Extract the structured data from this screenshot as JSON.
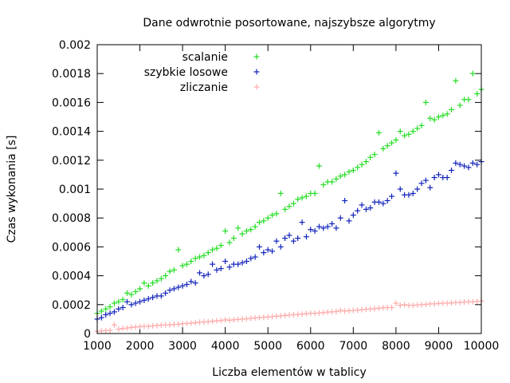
{
  "chart_data": {
    "type": "scatter",
    "title": "Dane odwrotnie posortowane, najszybsze algorytmy",
    "xlabel": "Liczba elementów w tablicy",
    "ylabel": "Czas wykonania [s]",
    "xlim": [
      1000,
      10000
    ],
    "ylim": [
      0,
      0.002
    ],
    "xticks": [
      1000,
      2000,
      3000,
      4000,
      5000,
      6000,
      7000,
      8000,
      9000,
      10000
    ],
    "xtick_labels": [
      "1000",
      "2000",
      "3000",
      "4000",
      "5000",
      "6000",
      "7000",
      "8000",
      "9000",
      "10000"
    ],
    "yticks": [
      0,
      0.0002,
      0.0004,
      0.0006,
      0.0008,
      0.001,
      0.0012,
      0.0014,
      0.0016,
      0.0018,
      0.002
    ],
    "ytick_labels": [
      "0",
      "0.0002",
      "0.0004",
      "0.0006",
      "0.0008",
      "0.001",
      "0.0012",
      "0.0014",
      "0.0016",
      "0.0018",
      "0.002"
    ],
    "grid": false,
    "legend_position": "top-left",
    "series": [
      {
        "name": "scalanie",
        "color": "#22dd22",
        "x": [
          1000,
          1100,
          1200,
          1300,
          1400,
          1500,
          1600,
          1700,
          1800,
          1900,
          2000,
          2100,
          2200,
          2300,
          2400,
          2500,
          2600,
          2700,
          2800,
          2900,
          3000,
          3100,
          3200,
          3300,
          3400,
          3500,
          3600,
          3700,
          3800,
          3900,
          4000,
          4100,
          4200,
          4300,
          4400,
          4500,
          4600,
          4700,
          4800,
          4900,
          5000,
          5100,
          5200,
          5300,
          5400,
          5500,
          5600,
          5700,
          5800,
          5900,
          6000,
          6100,
          6200,
          6300,
          6400,
          6500,
          6600,
          6700,
          6800,
          6900,
          7000,
          7100,
          7200,
          7300,
          7400,
          7500,
          7600,
          7700,
          7800,
          7900,
          8000,
          8100,
          8200,
          8300,
          8400,
          8500,
          8600,
          8700,
          8800,
          8900,
          9000,
          9100,
          9200,
          9300,
          9400,
          9500,
          9600,
          9700,
          9800,
          9900,
          10000
        ],
        "y": [
          0.00014,
          0.000155,
          0.00017,
          0.000185,
          0.00021,
          0.00022,
          0.000235,
          0.00028,
          0.00027,
          0.00029,
          0.00031,
          0.00035,
          0.00033,
          0.00035,
          0.000365,
          0.00038,
          0.0004,
          0.00043,
          0.00044,
          0.00058,
          0.00047,
          0.00048,
          0.0005,
          0.00052,
          0.00053,
          0.00054,
          0.00056,
          0.00058,
          0.00059,
          0.00061,
          0.00071,
          0.00063,
          0.00066,
          0.00073,
          0.00069,
          0.00071,
          0.00072,
          0.00074,
          0.00077,
          0.00078,
          0.0008,
          0.00082,
          0.00083,
          0.00097,
          0.00086,
          0.00088,
          0.0009,
          0.00093,
          0.00094,
          0.00095,
          0.00097,
          0.00097,
          0.00116,
          0.00103,
          0.00105,
          0.00105,
          0.00107,
          0.00109,
          0.0011,
          0.00112,
          0.00113,
          0.00115,
          0.00117,
          0.00119,
          0.00122,
          0.00124,
          0.00139,
          0.00128,
          0.0013,
          0.00132,
          0.00134,
          0.0014,
          0.00137,
          0.00138,
          0.0014,
          0.00142,
          0.00144,
          0.0016,
          0.00149,
          0.00148,
          0.0015,
          0.00151,
          0.00152,
          0.00155,
          0.00175,
          0.00158,
          0.00162,
          0.00162,
          0.0018,
          0.00166,
          0.00169
        ]
      },
      {
        "name": "szybkie losowe",
        "color": "#1122bb",
        "x": [
          1000,
          1100,
          1200,
          1300,
          1400,
          1500,
          1600,
          1700,
          1800,
          1900,
          2000,
          2100,
          2200,
          2300,
          2400,
          2500,
          2600,
          2700,
          2800,
          2900,
          3000,
          3100,
          3200,
          3300,
          3400,
          3500,
          3600,
          3700,
          3800,
          3900,
          4000,
          4100,
          4200,
          4300,
          4400,
          4500,
          4600,
          4700,
          4800,
          4900,
          5000,
          5100,
          5200,
          5300,
          5400,
          5500,
          5600,
          5700,
          5800,
          5900,
          6000,
          6100,
          6200,
          6300,
          6400,
          6500,
          6600,
          6700,
          6800,
          6900,
          7000,
          7100,
          7200,
          7300,
          7400,
          7500,
          7600,
          7700,
          7800,
          7900,
          8000,
          8100,
          8200,
          8300,
          8400,
          8500,
          8600,
          8700,
          8800,
          8900,
          9000,
          9100,
          9200,
          9300,
          9400,
          9500,
          9600,
          9700,
          9800,
          9900,
          10000
        ],
        "y": [
          0.0001,
          0.00011,
          0.00013,
          0.00014,
          0.00015,
          0.00017,
          0.00018,
          0.00022,
          0.0002,
          0.00021,
          0.00022,
          0.00023,
          0.00024,
          0.00025,
          0.00026,
          0.00026,
          0.00028,
          0.0003,
          0.00031,
          0.00032,
          0.00033,
          0.00034,
          0.00036,
          0.00035,
          0.00042,
          0.0004,
          0.00041,
          0.00048,
          0.00044,
          0.00045,
          0.0005,
          0.00046,
          0.00048,
          0.00048,
          0.00049,
          0.0005,
          0.00052,
          0.00053,
          0.0006,
          0.00056,
          0.00058,
          0.00057,
          0.00064,
          0.0006,
          0.00066,
          0.00068,
          0.00064,
          0.00066,
          0.00077,
          0.00067,
          0.00072,
          0.00071,
          0.00074,
          0.00073,
          0.00074,
          0.00076,
          0.00073,
          0.0008,
          0.00092,
          0.00078,
          0.00082,
          0.00085,
          0.00089,
          0.00086,
          0.00087,
          0.00091,
          0.00091,
          0.0009,
          0.00092,
          0.00095,
          0.00111,
          0.001,
          0.00096,
          0.00096,
          0.00097,
          0.001,
          0.00104,
          0.00106,
          0.00101,
          0.00108,
          0.0011,
          0.00108,
          0.00108,
          0.00113,
          0.00118,
          0.00117,
          0.00116,
          0.00115,
          0.00118,
          0.00117,
          0.00119
        ]
      },
      {
        "name": "zliczanie",
        "color": "#ffaaaa",
        "x": [
          1000,
          1100,
          1200,
          1300,
          1400,
          1500,
          1600,
          1700,
          1800,
          1900,
          2000,
          2100,
          2200,
          2300,
          2400,
          2500,
          2600,
          2700,
          2800,
          2900,
          3000,
          3100,
          3200,
          3300,
          3400,
          3500,
          3600,
          3700,
          3800,
          3900,
          4000,
          4100,
          4200,
          4300,
          4400,
          4500,
          4600,
          4700,
          4800,
          4900,
          5000,
          5100,
          5200,
          5300,
          5400,
          5500,
          5600,
          5700,
          5800,
          5900,
          6000,
          6100,
          6200,
          6300,
          6400,
          6500,
          6600,
          6700,
          6800,
          6900,
          7000,
          7100,
          7200,
          7300,
          7400,
          7500,
          7600,
          7700,
          7800,
          7900,
          8000,
          8100,
          8200,
          8300,
          8400,
          8500,
          8600,
          8700,
          8800,
          8900,
          9000,
          9100,
          9200,
          9300,
          9400,
          9500,
          9600,
          9700,
          9800,
          9900,
          10000
        ],
        "y": [
          1.5e-05,
          1.8e-05,
          2e-05,
          2.2e-05,
          6e-05,
          3e-05,
          3.5e-05,
          3.8e-05,
          4.2e-05,
          4.5e-05,
          4.8e-05,
          5e-05,
          5e-05,
          5.3e-05,
          5.5e-05,
          5.8e-05,
          6e-05,
          6e-05,
          6.3e-05,
          6.5e-05,
          6.8e-05,
          7e-05,
          7.2e-05,
          7.5e-05,
          7.8e-05,
          8e-05,
          8.2e-05,
          8.5e-05,
          8.8e-05,
          9e-05,
          9.5e-05,
          9.2e-05,
          9.5e-05,
          9.8e-05,
          0.0001,
          0.000102,
          0.000105,
          0.000108,
          0.00011,
          0.000112,
          0.000115,
          0.000117,
          0.00012,
          0.000122,
          0.000125,
          0.000128,
          0.00013,
          0.000132,
          0.000135,
          0.000138,
          0.00014,
          0.00014,
          0.000142,
          0.000145,
          0.000148,
          0.00015,
          0.000152,
          0.00016,
          0.000155,
          0.000158,
          0.00016,
          0.000162,
          0.000165,
          0.000168,
          0.00017,
          0.000172,
          0.000175,
          0.000178,
          0.00018,
          0.00018,
          0.00021,
          0.000195,
          0.0002,
          0.000195,
          0.000195,
          0.000198,
          0.0002,
          0.000202,
          0.000205,
          0.000205,
          0.000208,
          0.00021,
          0.00021,
          0.000212,
          0.000215,
          0.000215,
          0.000218,
          0.00022,
          0.00022,
          0.000222,
          0.000225
        ]
      }
    ]
  }
}
